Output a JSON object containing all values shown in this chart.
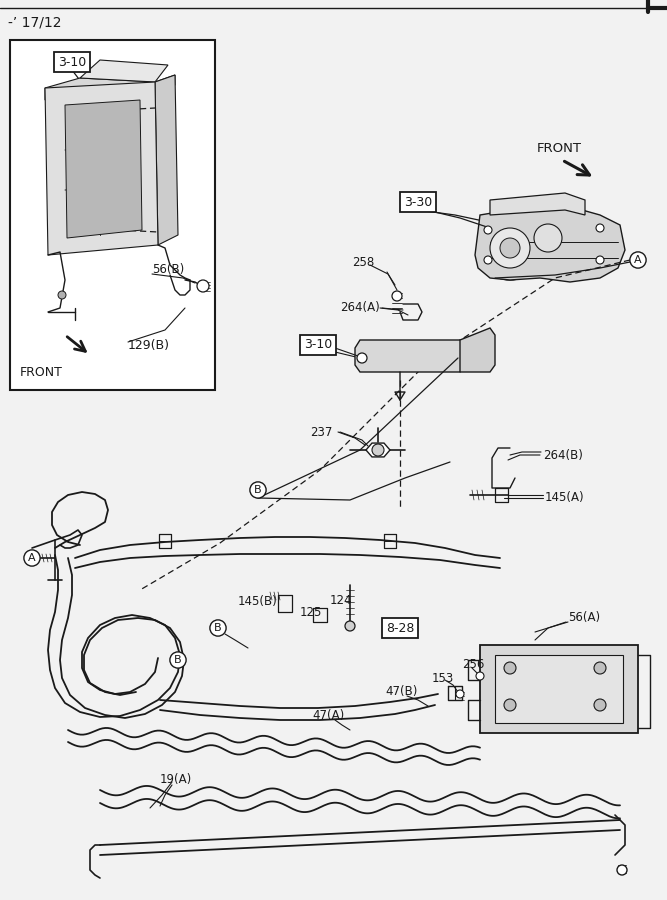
{
  "bg_color": "#f2f2f2",
  "line_color": "#1a1a1a",
  "white": "#ffffff",
  "title": "-’ 17/12",
  "labels": {
    "ref_inset": "3-10",
    "ref_mid": "3-10",
    "ref_tr": "3-30",
    "ref_bot": "8-28",
    "front_tr": "FRONT",
    "front_inset": "FRONT",
    "n258": "258",
    "n264a": "264(A)",
    "n264b": "264(B)",
    "n237": "237",
    "n56a": "56(A)",
    "n56b": "56(B)",
    "n129b": "129(B)",
    "n145a": "145(A)",
    "n145b": "145(B)",
    "n124": "124",
    "n125": "125",
    "n47a": "47(A)",
    "n47b": "47(B)",
    "n19a": "19(A)",
    "n153": "153",
    "n256": "256",
    "circA": "A",
    "circB": "B"
  }
}
